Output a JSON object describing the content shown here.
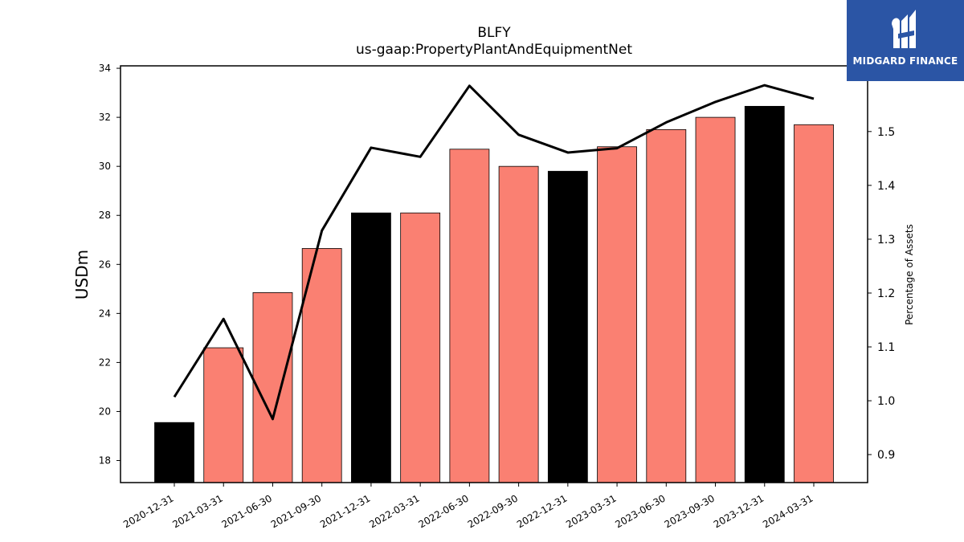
{
  "chart_data": {
    "type": "bar",
    "title": "BLFY",
    "subtitle": "us-gaap:PropertyPlantAndEquipmentNet",
    "ylabel": "USDm",
    "y2label": "Percentage of Assets",
    "categories": [
      "2020-12-31",
      "2021-03-31",
      "2021-06-30",
      "2021-09-30",
      "2021-12-31",
      "2022-03-31",
      "2022-06-30",
      "2022-09-30",
      "2022-12-31",
      "2023-03-31",
      "2023-06-30",
      "2023-09-30",
      "2023-12-31",
      "2024-03-31"
    ],
    "series": [
      {
        "type": "bar",
        "values": [
          19.55,
          22.6,
          24.85,
          26.65,
          28.1,
          28.1,
          30.7,
          30.0,
          29.8,
          30.8,
          31.5,
          32.0,
          32.45,
          31.7
        ],
        "colors": [
          "#000000",
          "#fa8072",
          "#fa8072",
          "#fa8072",
          "#000000",
          "#fa8072",
          "#fa8072",
          "#fa8072",
          "#000000",
          "#fa8072",
          "#fa8072",
          "#fa8072",
          "#000000",
          "#fa8072"
        ]
      },
      {
        "type": "line",
        "axis": "right",
        "color": "#000000",
        "values": [
          1.007,
          1.152,
          0.966,
          1.316,
          1.47,
          1.453,
          1.585,
          1.494,
          1.461,
          1.469,
          1.517,
          1.555,
          1.586,
          1.561
        ]
      }
    ],
    "ylim": [
      17.1,
      34.1
    ],
    "yticks": [
      "18",
      "20",
      "22",
      "24",
      "26",
      "28",
      "30",
      "32",
      "34"
    ],
    "y2lim": [
      0.848,
      1.622
    ],
    "y2ticks": [
      "0.9",
      "1.0",
      "1.1",
      "1.2",
      "1.3",
      "1.4",
      "1.5"
    ],
    "grid": false,
    "legend": "none"
  },
  "logo": {
    "text": "MIDGARD FINANCE",
    "color": "#2b55a5"
  }
}
